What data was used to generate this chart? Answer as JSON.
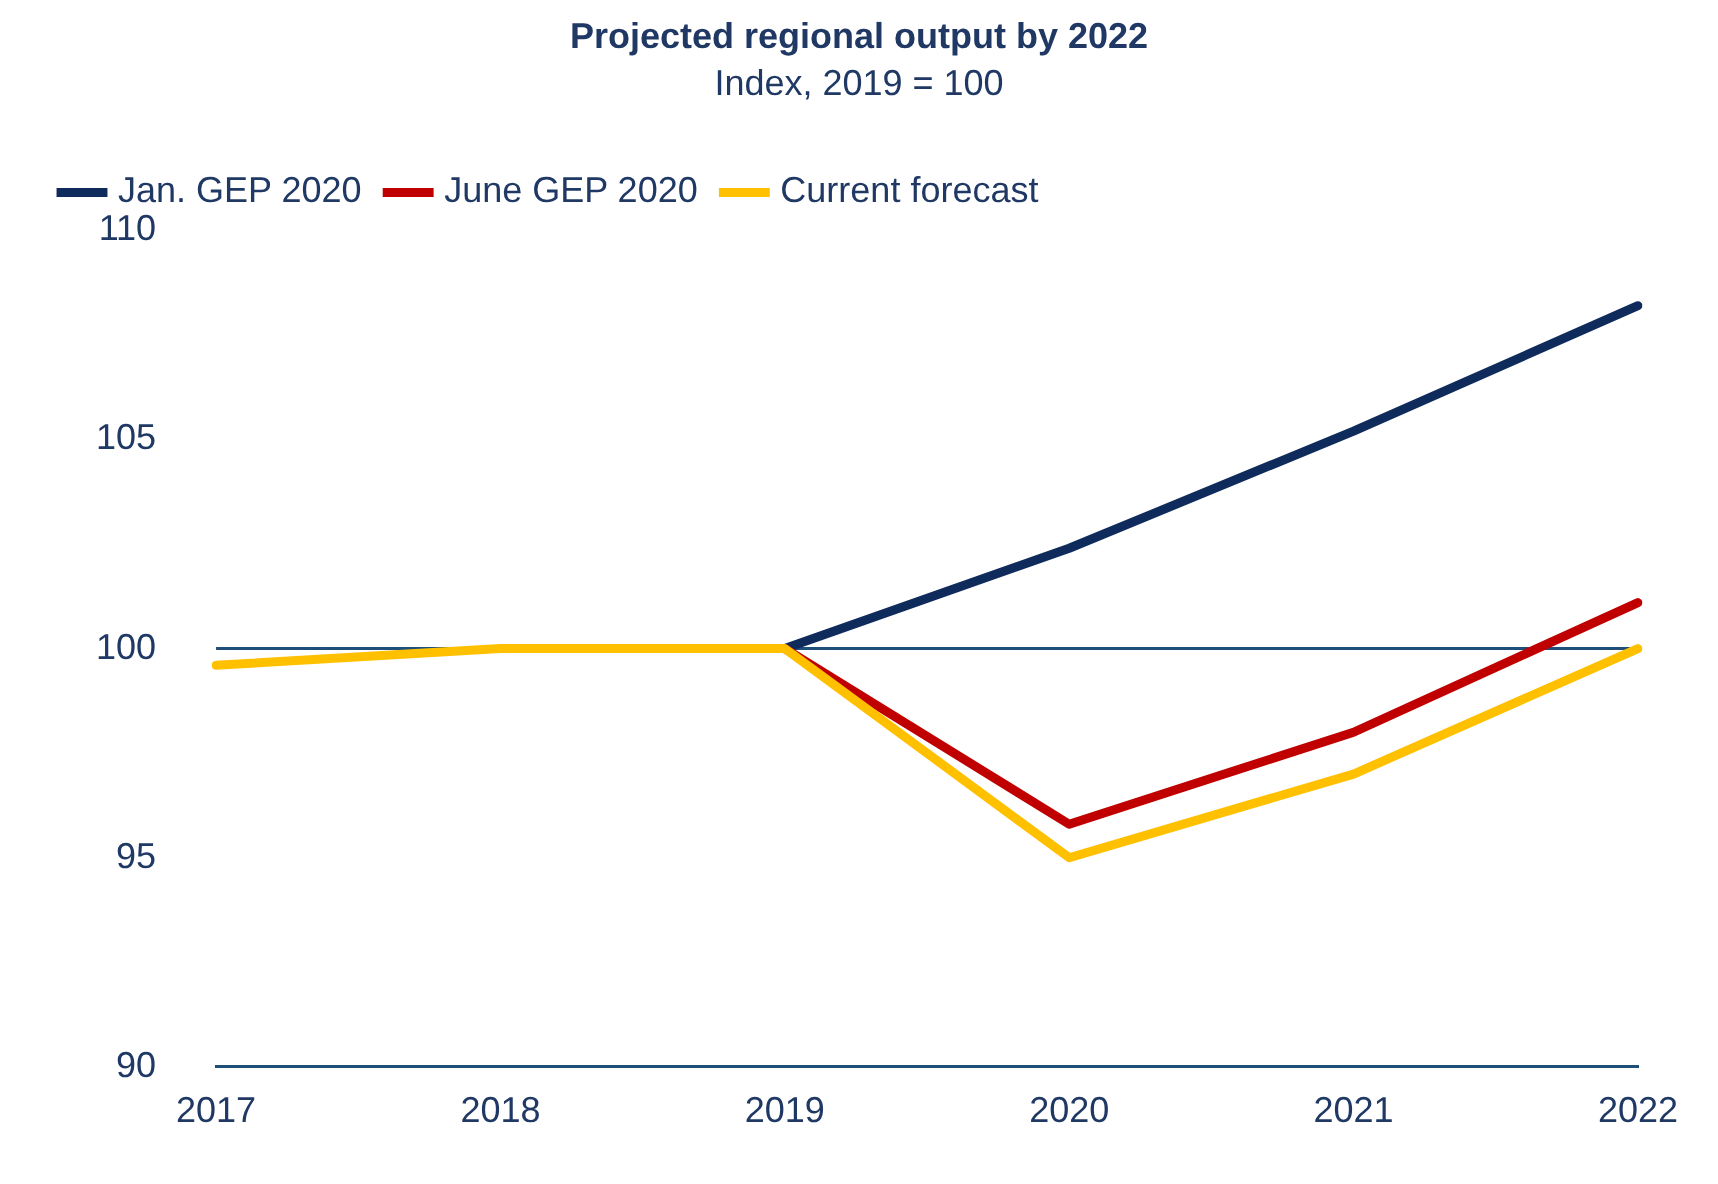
{
  "chart_data": {
    "type": "line",
    "title": "Projected regional output by 2022",
    "subtitle": "Index, 2019 = 100",
    "categories": [
      "2017",
      "2018",
      "2019",
      "2020",
      "2021",
      "2022"
    ],
    "series": [
      {
        "name": "Jan. GEP 2020",
        "color": "#0f2b5b",
        "values": [
          null,
          null,
          100,
          102.4,
          105.2,
          108.2
        ]
      },
      {
        "name": "June GEP 2020",
        "color": "#c00000",
        "values": [
          null,
          null,
          100,
          95.8,
          98,
          101.1
        ]
      },
      {
        "name": "Current forecast",
        "color": "#ffc000",
        "values": [
          99.6,
          100,
          100,
          95,
          97,
          100
        ]
      }
    ],
    "ylim": [
      90,
      110
    ],
    "yticks": [
      90,
      95,
      100,
      105,
      110
    ],
    "ref_lines": [
      {
        "axis": "y",
        "value": 100,
        "color": "#1f4e79"
      }
    ],
    "grid": false,
    "legend": "top left",
    "marker": "none",
    "line_style": "solid"
  }
}
